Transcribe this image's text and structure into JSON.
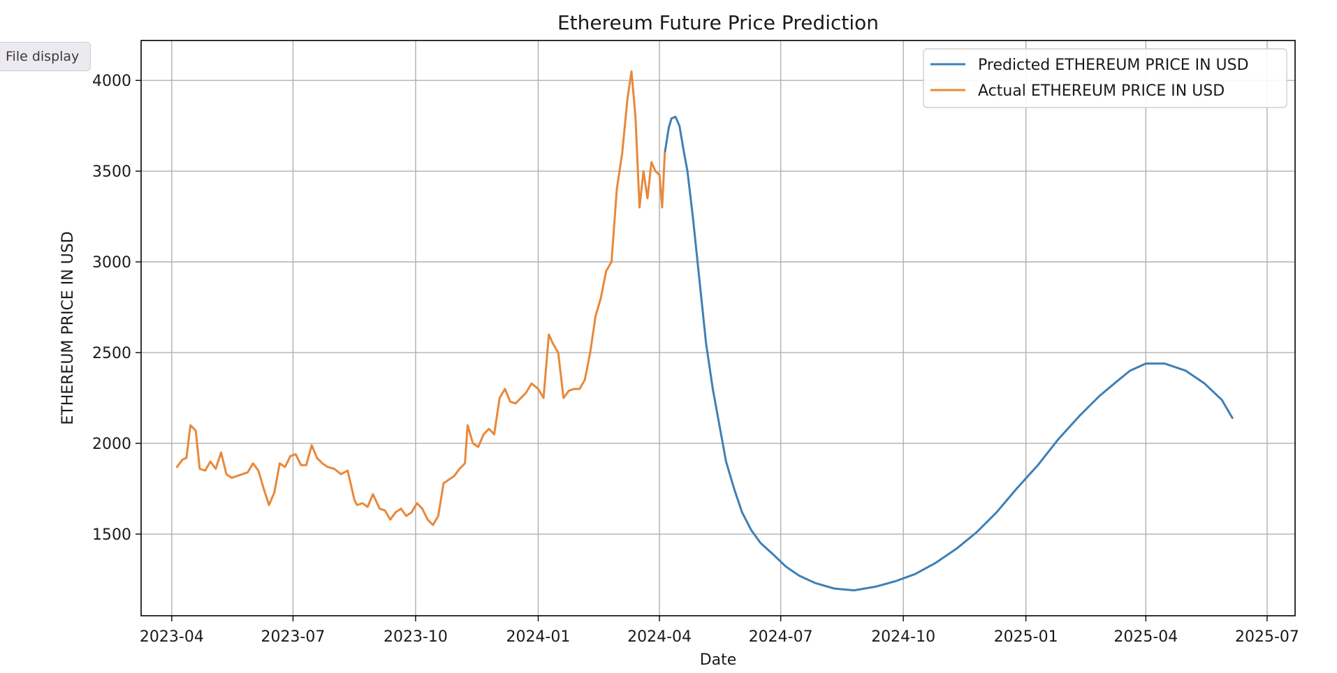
{
  "tooltip": {
    "label": "File display"
  },
  "chart_data": {
    "type": "line",
    "title": "Ethereum Future Price Prediction",
    "xlabel": "Date",
    "ylabel": "ETHEREUM PRICE IN USD",
    "x_ticks": [
      "2023-04",
      "2023-07",
      "2023-10",
      "2024-01",
      "2024-04",
      "2024-07",
      "2024-10",
      "2025-01",
      "2025-04",
      "2025-07"
    ],
    "y_ticks": [
      1500,
      2000,
      2500,
      3000,
      3500,
      4000
    ],
    "xlim": [
      "2023-03-09",
      "2025-07-22"
    ],
    "ylim": [
      1050,
      4220
    ],
    "grid": true,
    "legend_position": "top-right",
    "series": [
      {
        "name": "Predicted ETHEREUM PRICE IN USD",
        "color": "#3f7fb5",
        "x": [
          "2024-04-05",
          "2024-04-08",
          "2024-04-10",
          "2024-04-13",
          "2024-04-16",
          "2024-04-19",
          "2024-04-22",
          "2024-04-26",
          "2024-05-01",
          "2024-05-06",
          "2024-05-11",
          "2024-05-16",
          "2024-05-21",
          "2024-05-27",
          "2024-06-02",
          "2024-06-09",
          "2024-06-16",
          "2024-06-25",
          "2024-07-05",
          "2024-07-15",
          "2024-07-27",
          "2024-08-10",
          "2024-08-25",
          "2024-09-10",
          "2024-09-25",
          "2024-10-10",
          "2024-10-25",
          "2024-11-10",
          "2024-11-25",
          "2024-12-10",
          "2024-12-25",
          "2025-01-10",
          "2025-01-25",
          "2025-02-10",
          "2025-02-25",
          "2025-03-10",
          "2025-03-20",
          "2025-04-01",
          "2025-04-15",
          "2025-05-01",
          "2025-05-15",
          "2025-05-28",
          "2025-06-05"
        ],
        "y": [
          3600,
          3740,
          3790,
          3800,
          3750,
          3620,
          3500,
          3250,
          2900,
          2550,
          2300,
          2100,
          1900,
          1750,
          1620,
          1520,
          1450,
          1390,
          1320,
          1270,
          1230,
          1200,
          1190,
          1210,
          1240,
          1280,
          1340,
          1420,
          1510,
          1620,
          1750,
          1880,
          2020,
          2150,
          2260,
          2340,
          2400,
          2440,
          2440,
          2400,
          2330,
          2240,
          2140
        ]
      },
      {
        "name": "Actual ETHEREUM PRICE IN USD",
        "color": "#e8883a",
        "x": [
          "2023-04-05",
          "2023-04-09",
          "2023-04-12",
          "2023-04-15",
          "2023-04-19",
          "2023-04-22",
          "2023-04-26",
          "2023-04-30",
          "2023-05-04",
          "2023-05-08",
          "2023-05-12",
          "2023-05-16",
          "2023-05-20",
          "2023-05-24",
          "2023-05-28",
          "2023-06-01",
          "2023-06-05",
          "2023-06-09",
          "2023-06-13",
          "2023-06-17",
          "2023-06-21",
          "2023-06-25",
          "2023-06-29",
          "2023-07-03",
          "2023-07-07",
          "2023-07-11",
          "2023-07-15",
          "2023-07-19",
          "2023-07-23",
          "2023-07-27",
          "2023-08-01",
          "2023-08-06",
          "2023-08-11",
          "2023-08-16",
          "2023-08-18",
          "2023-08-22",
          "2023-08-26",
          "2023-08-30",
          "2023-09-04",
          "2023-09-08",
          "2023-09-12",
          "2023-09-16",
          "2023-09-20",
          "2023-09-24",
          "2023-09-28",
          "2023-10-02",
          "2023-10-06",
          "2023-10-10",
          "2023-10-14",
          "2023-10-18",
          "2023-10-22",
          "2023-10-26",
          "2023-10-30",
          "2023-11-03",
          "2023-11-07",
          "2023-11-09",
          "2023-11-13",
          "2023-11-17",
          "2023-11-21",
          "2023-11-25",
          "2023-11-29",
          "2023-12-03",
          "2023-12-07",
          "2023-12-11",
          "2023-12-15",
          "2023-12-19",
          "2023-12-23",
          "2023-12-27",
          "2024-01-01",
          "2024-01-05",
          "2024-01-09",
          "2024-01-12",
          "2024-01-16",
          "2024-01-20",
          "2024-01-24",
          "2024-01-28",
          "2024-02-01",
          "2024-02-05",
          "2024-02-09",
          "2024-02-13",
          "2024-02-17",
          "2024-02-21",
          "2024-02-25",
          "2024-02-29",
          "2024-03-04",
          "2024-03-08",
          "2024-03-11",
          "2024-03-14",
          "2024-03-17",
          "2024-03-20",
          "2024-03-23",
          "2024-03-26",
          "2024-03-29",
          "2024-04-01",
          "2024-04-03",
          "2024-04-05"
        ],
        "y": [
          1870,
          1910,
          1920,
          2100,
          2070,
          1860,
          1850,
          1900,
          1860,
          1950,
          1830,
          1810,
          1820,
          1830,
          1840,
          1890,
          1850,
          1750,
          1660,
          1730,
          1890,
          1870,
          1930,
          1940,
          1880,
          1880,
          1990,
          1920,
          1890,
          1870,
          1860,
          1830,
          1850,
          1690,
          1660,
          1670,
          1650,
          1720,
          1640,
          1630,
          1580,
          1620,
          1640,
          1600,
          1620,
          1670,
          1640,
          1580,
          1550,
          1600,
          1780,
          1800,
          1820,
          1860,
          1890,
          2100,
          2000,
          1980,
          2050,
          2080,
          2050,
          2250,
          2300,
          2230,
          2220,
          2250,
          2280,
          2330,
          2300,
          2250,
          2600,
          2550,
          2500,
          2250,
          2290,
          2300,
          2300,
          2350,
          2500,
          2700,
          2800,
          2950,
          3000,
          3400,
          3600,
          3900,
          4050,
          3800,
          3300,
          3500,
          3350,
          3550,
          3500,
          3480,
          3300,
          3600
        ]
      }
    ]
  }
}
